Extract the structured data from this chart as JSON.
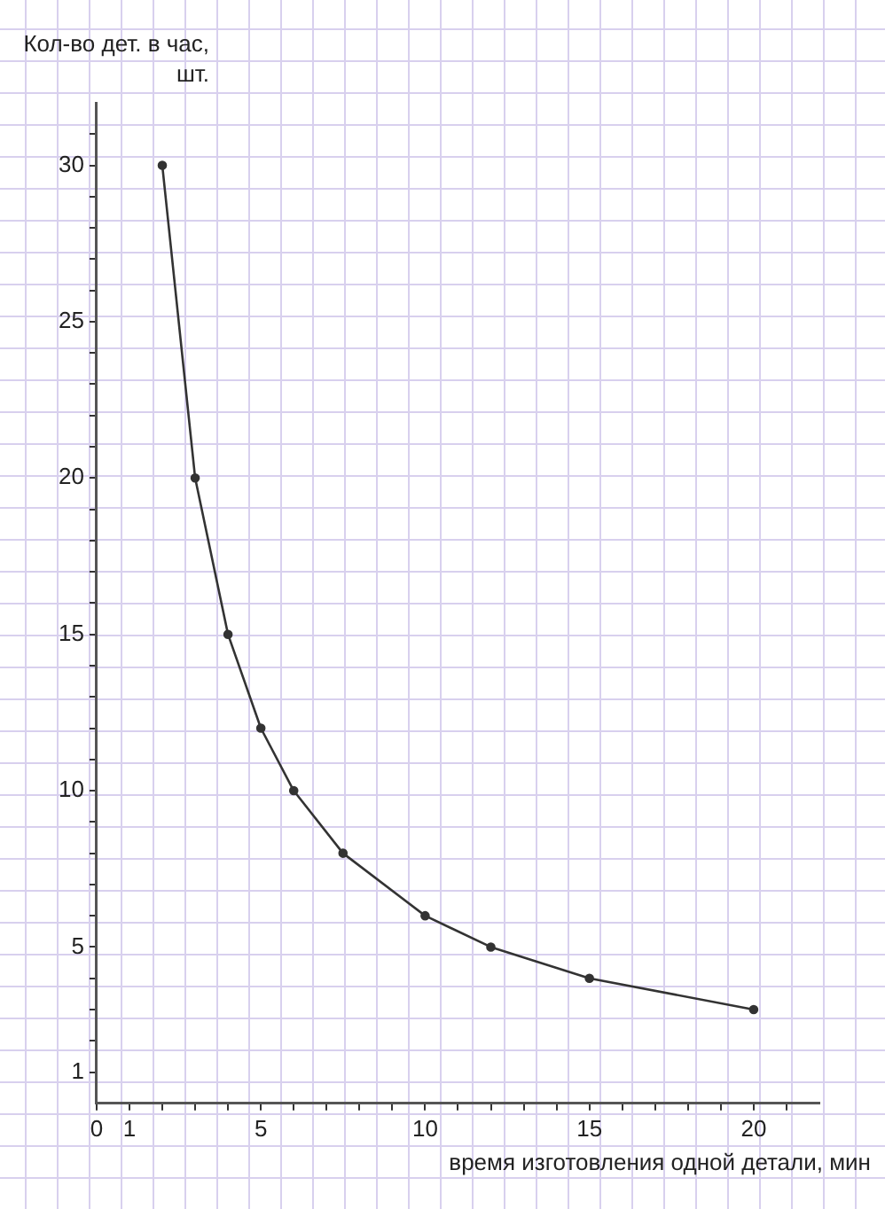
{
  "chart_data": {
    "type": "line",
    "xlabel": "время изготовления одной детали, мин",
    "ylabel": "Кол-во дет. в час, шт.",
    "x": [
      2,
      3,
      4,
      5,
      6,
      7.5,
      10,
      12,
      15,
      20
    ],
    "series": [
      {
        "color": "#333333",
        "values": [
          30,
          20,
          15,
          12,
          10,
          8,
          6,
          5,
          4,
          3
        ]
      }
    ],
    "xlim": [
      0,
      22
    ],
    "ylim": [
      0,
      32
    ],
    "xticks": [
      0,
      1,
      {
        "value": 2,
        "label": null
      },
      {
        "value": 3,
        "label": null
      },
      {
        "value": 4,
        "label": null
      },
      5,
      {
        "value": 6,
        "label": null
      },
      {
        "value": 7,
        "label": null
      },
      {
        "value": 8,
        "label": null
      },
      {
        "value": 9,
        "label": null
      },
      10,
      {
        "value": 11,
        "label": null
      },
      {
        "value": 12,
        "label": null
      },
      {
        "value": 13,
        "label": null
      },
      {
        "value": 14,
        "label": null
      },
      15,
      {
        "value": 16,
        "label": null
      },
      {
        "value": 17,
        "label": null
      },
      {
        "value": 18,
        "label": null
      },
      {
        "value": 19,
        "label": null
      },
      20,
      {
        "value": 21,
        "label": null
      }
    ],
    "yticks": [
      1,
      {
        "value": 2,
        "label": null
      },
      {
        "value": 3,
        "label": null
      },
      {
        "value": 4,
        "label": null
      },
      5,
      {
        "value": 6,
        "label": null
      },
      {
        "value": 7,
        "label": null
      },
      {
        "value": 8,
        "label": null
      },
      {
        "value": 9,
        "label": null
      },
      10,
      {
        "value": 11,
        "label": null
      },
      {
        "value": 12,
        "label": null
      },
      {
        "value": 13,
        "label": null
      },
      {
        "value": 14,
        "label": null
      },
      15,
      {
        "value": 16,
        "label": null
      },
      {
        "value": 17,
        "label": null
      },
      {
        "value": 18,
        "label": null
      },
      {
        "value": 19,
        "label": null
      },
      20,
      {
        "value": 21,
        "label": null
      },
      {
        "value": 22,
        "label": null
      },
      {
        "value": 23,
        "label": null
      },
      {
        "value": 24,
        "label": null
      },
      25,
      {
        "value": 26,
        "label": null
      },
      {
        "value": 27,
        "label": null
      },
      {
        "value": 28,
        "label": null
      },
      {
        "value": 29,
        "label": null
      },
      30,
      {
        "value": 31,
        "label": null
      }
    ],
    "grid": false,
    "legend": false,
    "marker": "circle",
    "line_style": "solid"
  }
}
